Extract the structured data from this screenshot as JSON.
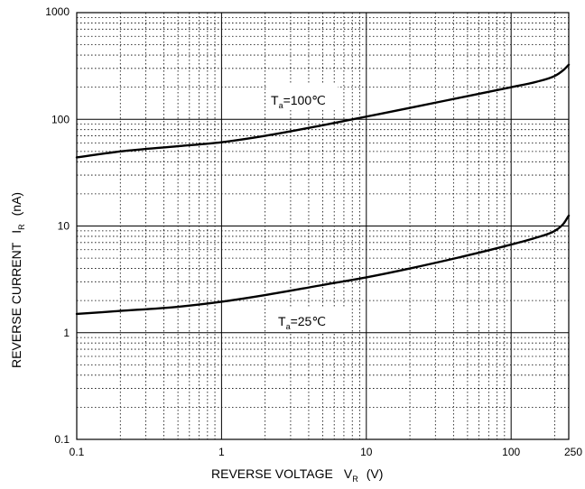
{
  "chart_data": {
    "type": "line",
    "title": "",
    "xlabel": {
      "main": "REVERSE VOLTAGE",
      "symbol": "V",
      "subscript": "R",
      "unit": "(V)"
    },
    "ylabel": {
      "main": "REVERSE CURRENT",
      "symbol": "I",
      "subscript": "R",
      "unit": "(nA)"
    },
    "x_scale": "log",
    "y_scale": "log",
    "xlim": [
      0.1,
      250
    ],
    "ylim": [
      0.1,
      1000
    ],
    "x_ticks": [
      0.1,
      1,
      10,
      100,
      250
    ],
    "x_tick_labels": [
      "0.1",
      "1",
      "10",
      "100",
      "250"
    ],
    "y_ticks": [
      0.1,
      1,
      10,
      100,
      1000
    ],
    "y_tick_labels": [
      "0.1",
      "1",
      "10",
      "100",
      "1000"
    ],
    "grid": true,
    "series": [
      {
        "x": [
          0.1,
          0.2,
          0.5,
          1,
          2,
          5,
          10,
          20,
          50,
          100,
          150,
          200,
          230,
          250
        ],
        "y": [
          44,
          50,
          56,
          61,
          70,
          88,
          106,
          128,
          165,
          200,
          225,
          255,
          290,
          325
        ]
      },
      {
        "x": [
          0.1,
          0.2,
          0.5,
          1,
          2,
          5,
          10,
          20,
          50,
          100,
          150,
          200,
          230,
          250
        ],
        "y": [
          1.5,
          1.6,
          1.75,
          1.95,
          2.25,
          2.8,
          3.3,
          4.0,
          5.3,
          6.7,
          7.8,
          9.0,
          10.5,
          12.5
        ]
      }
    ],
    "annotations": [
      {
        "label": "T",
        "subscript": "a",
        "text": "=100℃"
      },
      {
        "label": "T",
        "subscript": "a",
        "text": "=25℃"
      }
    ]
  }
}
